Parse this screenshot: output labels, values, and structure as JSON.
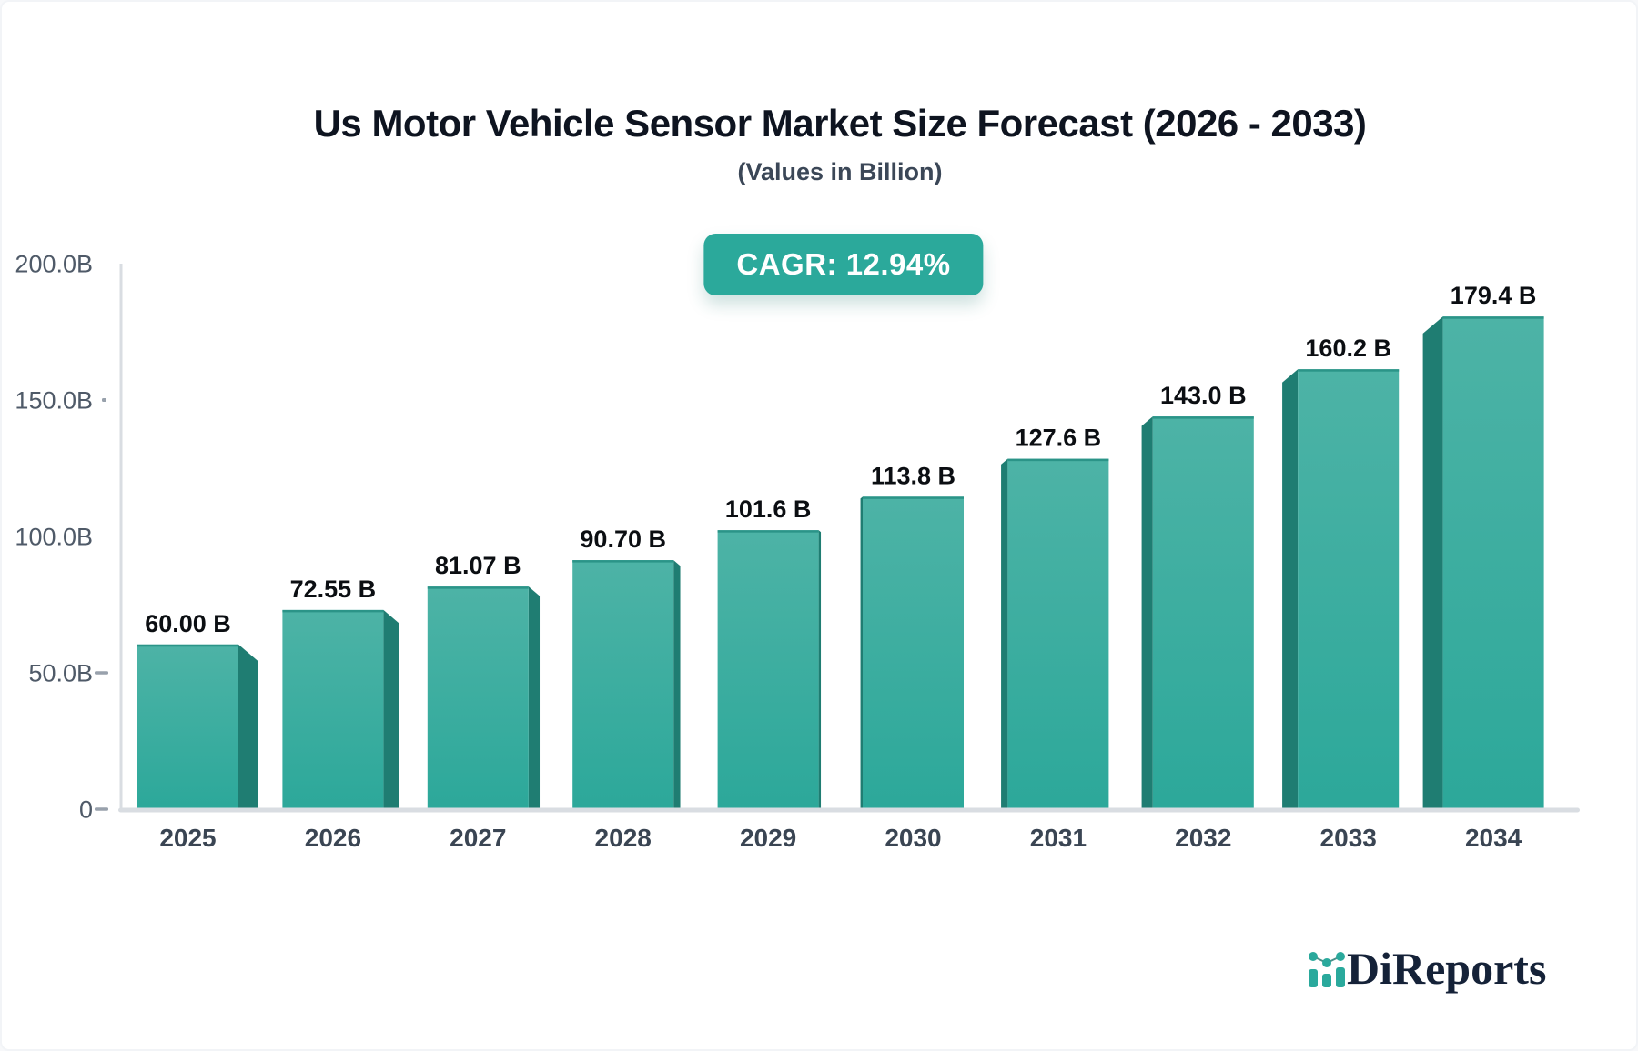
{
  "header": {
    "title": "Us Motor Vehicle Sensor Market Size Forecast (2026 - 2033)",
    "subtitle": "(Values in Billion)",
    "cagr_badge": "CAGR: 12.94%"
  },
  "footer": {
    "brand": "DiReports"
  },
  "colors": {
    "bar_front_top": "#4db3a6",
    "bar_front_bottom": "#2ca89a",
    "bar_side": "#1f7d72",
    "bar_top_edge": "#2b9488",
    "badge_bg": "#2ba99b",
    "axis_line": "#d9dde2",
    "tick_mark": "#98a1ac",
    "y_label": "#4f5a68",
    "x_label": "#3a4553",
    "value_label": "#0b0e12",
    "brand_navy": "#152238",
    "brand_teal": "#2aa99c"
  },
  "chart_data": {
    "type": "bar",
    "style": "3d-column",
    "title": "Us Motor Vehicle Sensor Market Size Forecast (2026 - 2033)",
    "subtitle": "(Values in Billion)",
    "annotation": "CAGR: 12.94%",
    "categories": [
      "2025",
      "2026",
      "2027",
      "2028",
      "2029",
      "2030",
      "2031",
      "2032",
      "2033",
      "2034"
    ],
    "values": [
      60.0,
      72.55,
      81.07,
      90.7,
      101.6,
      113.8,
      127.6,
      143.0,
      160.2,
      179.4
    ],
    "value_labels": [
      "60.00 B",
      "72.55 B",
      "81.07 B",
      "90.70 B",
      "101.6 B",
      "113.8 B",
      "127.6 B",
      "143.0 B",
      "160.2 B",
      "179.4 B"
    ],
    "unit": "B",
    "xlabel": "",
    "ylabel": "",
    "ylim": [
      0,
      200
    ],
    "grid": false,
    "legend": false,
    "y_ticks": [
      {
        "label": "200.0B",
        "value": 200,
        "tick": "none"
      },
      {
        "label": "150.0B",
        "value": 150,
        "tick": "dot"
      },
      {
        "label": "100.0B",
        "value": 100,
        "tick": "none"
      },
      {
        "label": "50.0B",
        "value": 50,
        "tick": "dash"
      },
      {
        "label": "0",
        "value": 0,
        "tick": "dash"
      }
    ]
  }
}
